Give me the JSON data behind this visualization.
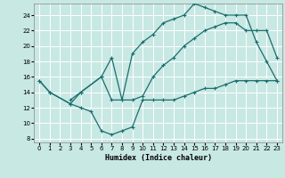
{
  "xlabel": "Humidex (Indice chaleur)",
  "xlim": [
    -0.5,
    23.5
  ],
  "ylim": [
    7.5,
    25.5
  ],
  "xticks": [
    0,
    1,
    2,
    3,
    4,
    5,
    6,
    7,
    8,
    9,
    10,
    11,
    12,
    13,
    14,
    15,
    16,
    17,
    18,
    19,
    20,
    21,
    22,
    23
  ],
  "yticks": [
    8,
    10,
    12,
    14,
    16,
    18,
    20,
    22,
    24
  ],
  "bg_color": "#c8e8e4",
  "line_color": "#1a6e6e",
  "grid_color": "#ffffff",
  "curve1_x": [
    0,
    1,
    3,
    4,
    5,
    6,
    7,
    8,
    9,
    10,
    11,
    12,
    13,
    14,
    15,
    16,
    17,
    18,
    19,
    20,
    21,
    22,
    23
  ],
  "curve1_y": [
    15.5,
    14,
    12.5,
    12,
    11.5,
    9,
    8.5,
    9,
    9.5,
    13,
    13,
    13,
    13,
    13.5,
    14,
    14.5,
    14.5,
    15,
    15.5,
    15.5,
    15.5,
    15.5,
    15.5
  ],
  "curve2_x": [
    0,
    1,
    3,
    4,
    6,
    7,
    8,
    9,
    10,
    11,
    12,
    13,
    14,
    15,
    16,
    17,
    18,
    19,
    20,
    21,
    22,
    23
  ],
  "curve2_y": [
    15.5,
    14,
    12.5,
    14,
    16,
    13,
    13,
    19,
    20.5,
    21.5,
    23,
    23.5,
    24,
    25.5,
    25,
    24.5,
    24,
    24,
    24,
    20.5,
    18,
    15.5
  ],
  "curve3_x": [
    3,
    4,
    6,
    7,
    8,
    9,
    10,
    11,
    12,
    13,
    14,
    15,
    16,
    17,
    18,
    19,
    20,
    21,
    22,
    23
  ],
  "curve3_y": [
    13,
    14,
    16,
    18.5,
    13,
    13,
    13.5,
    16,
    17.5,
    18.5,
    20,
    21,
    22,
    22.5,
    23,
    23,
    22,
    22,
    22,
    18.5
  ]
}
